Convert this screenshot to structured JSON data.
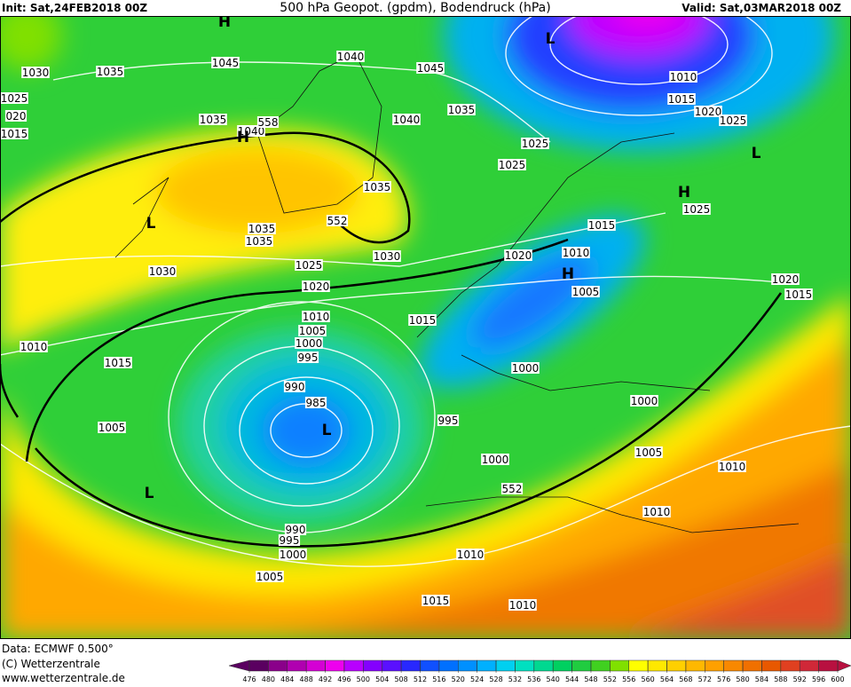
{
  "header": {
    "init": "Init: Sat,24FEB2018 00Z",
    "title": "500 hPa Geopot. (gpdm), Bodendruck (hPa)",
    "valid": "Valid: Sat,03MAR2018 00Z"
  },
  "map": {
    "pressure_labels": [
      "1030",
      "1035",
      "1045",
      "1040",
      "1045",
      "1025",
      "020",
      "1015",
      "1035",
      "1040",
      "558",
      "1040",
      "1035",
      "1010",
      "1015",
      "1020",
      "1025",
      "1025",
      "1025",
      "1035",
      "1035",
      "1035",
      "552",
      "1030",
      "1030",
      "1025",
      "1020",
      "1020",
      "1015",
      "1010",
      "1005",
      "1020",
      "1015",
      "1010",
      "1005",
      "1000",
      "995",
      "1015",
      "1010",
      "1015",
      "990",
      "985",
      "1000",
      "995",
      "1000",
      "1005",
      "1005",
      "1000",
      "1010",
      "552",
      "1010",
      "990",
      "995",
      "1000",
      "1010",
      "1005",
      "1015",
      "1010",
      "1025"
    ],
    "centers": [
      "H",
      "H",
      "L",
      "L",
      "L",
      "H",
      "H",
      "L",
      "L"
    ]
  },
  "footer": {
    "data": "Data: ECMWF   0.500°",
    "copyright": "(C) Wetterzentrale",
    "url": "www.wetterzentrale.de"
  },
  "colorbar": {
    "ticks": [
      476,
      480,
      484,
      488,
      492,
      496,
      500,
      504,
      508,
      512,
      516,
      520,
      524,
      528,
      532,
      536,
      540,
      544,
      548,
      552,
      556,
      560,
      564,
      568,
      572,
      576,
      580,
      584,
      588,
      592,
      596,
      600
    ],
    "colors": [
      "#5a0060",
      "#8a008a",
      "#b000b0",
      "#d400d4",
      "#ee00ee",
      "#b800ff",
      "#8400ff",
      "#5a10ff",
      "#2828ff",
      "#1050ff",
      "#0070ff",
      "#0090ff",
      "#00b0ff",
      "#00d0f0",
      "#00e0c0",
      "#00d890",
      "#00d060",
      "#20cc40",
      "#40d020",
      "#80e000",
      "#ffff00",
      "#ffe800",
      "#ffd000",
      "#ffb800",
      "#ffa000",
      "#f88800",
      "#f07000",
      "#e85800",
      "#e04020",
      "#d02838",
      "#b81040"
    ]
  }
}
